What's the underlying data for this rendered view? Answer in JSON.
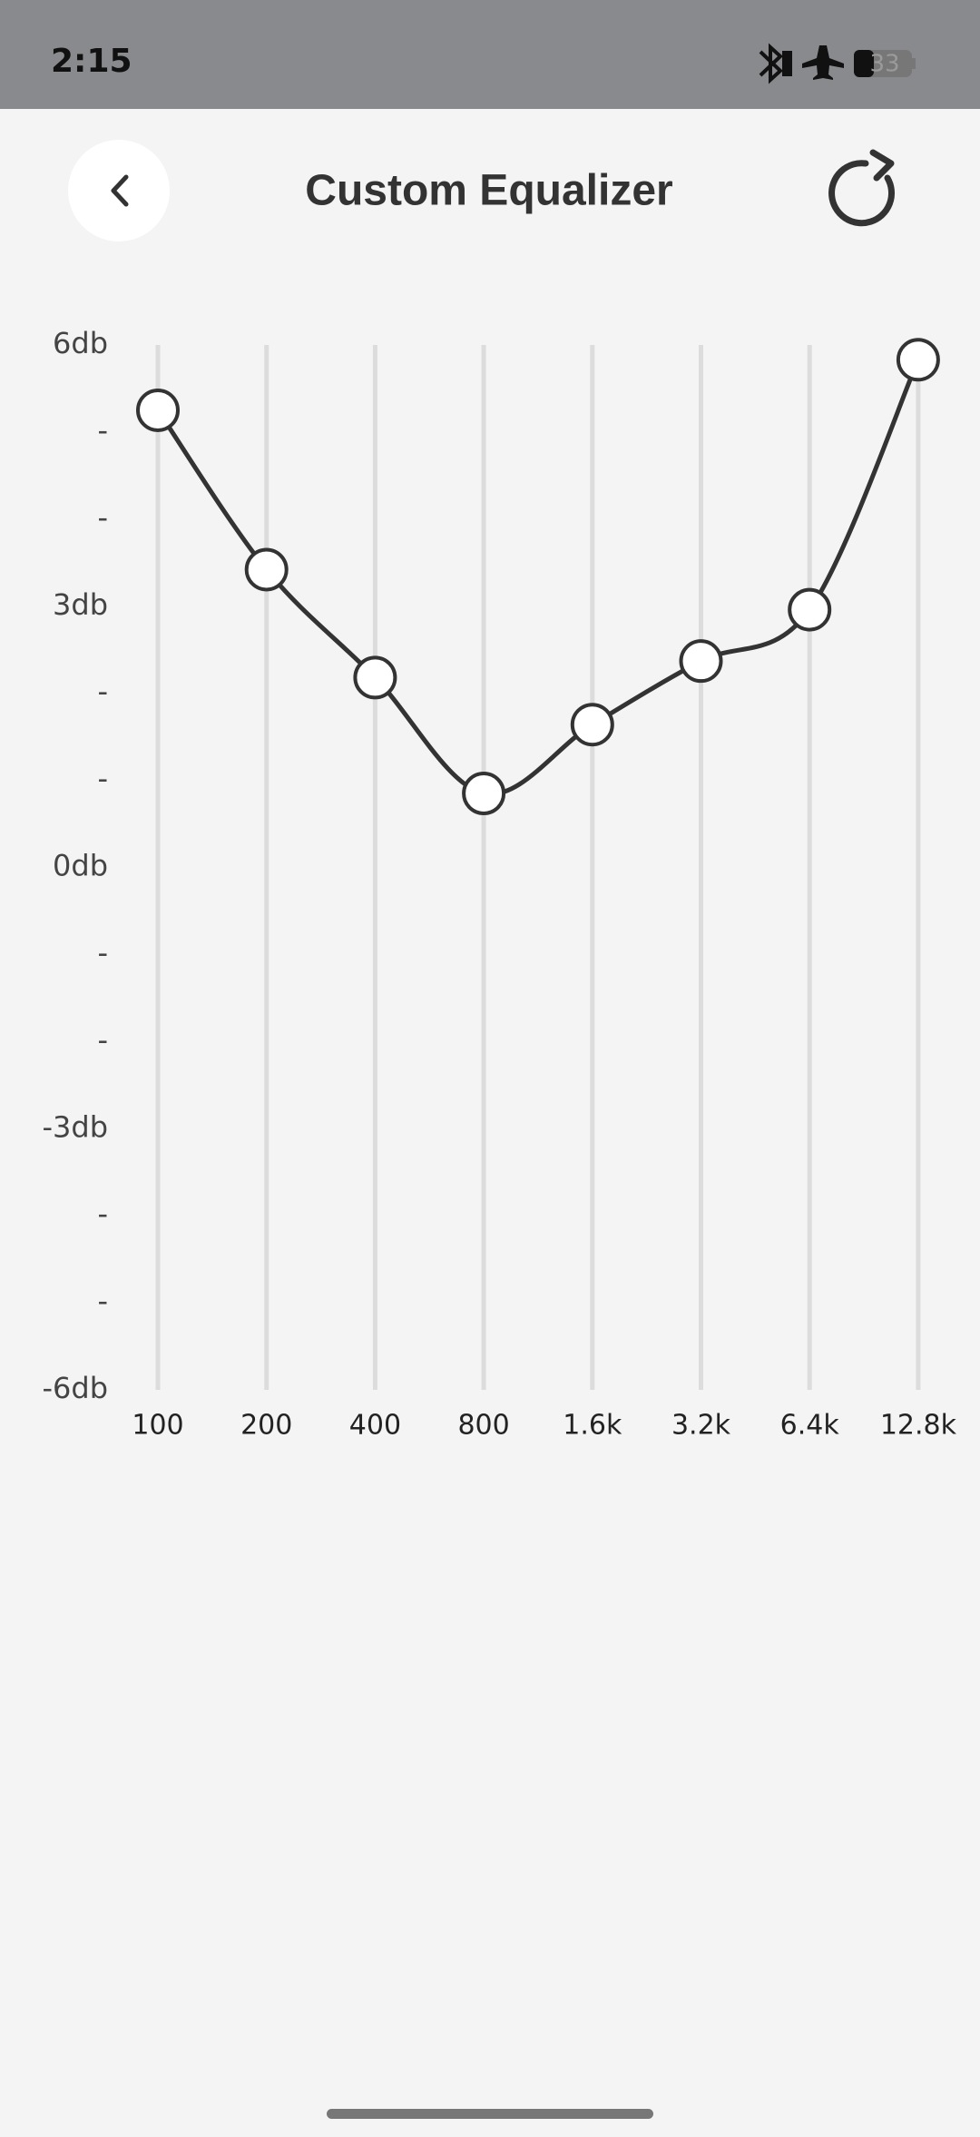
{
  "status_bar": {
    "time": "2:15",
    "battery": "33"
  },
  "header": {
    "title": "Custom Equalizer"
  },
  "chart_data": {
    "type": "line",
    "categories": [
      "100",
      "200",
      "400",
      "800",
      "1.6k",
      "3.2k",
      "6.4k",
      "12.8k"
    ],
    "values": [
      5.25,
      3.42,
      2.18,
      0.85,
      1.64,
      2.37,
      2.96,
      5.83
    ],
    "color": "#333333",
    "ylim": [
      -6,
      6
    ],
    "yticks": [
      {
        "value": 6,
        "label": "6db"
      },
      {
        "value": 5,
        "label": "-"
      },
      {
        "value": 4,
        "label": "-"
      },
      {
        "value": 3,
        "label": "3db"
      },
      {
        "value": 2,
        "label": "-"
      },
      {
        "value": 1,
        "label": "-"
      },
      {
        "value": 0,
        "label": "0db"
      },
      {
        "value": -1,
        "label": "-"
      },
      {
        "value": -2,
        "label": "-"
      },
      {
        "value": -3,
        "label": "-3db"
      },
      {
        "value": -4,
        "label": "-"
      },
      {
        "value": -5,
        "label": "-"
      },
      {
        "value": -6,
        "label": "-6db"
      }
    ]
  }
}
